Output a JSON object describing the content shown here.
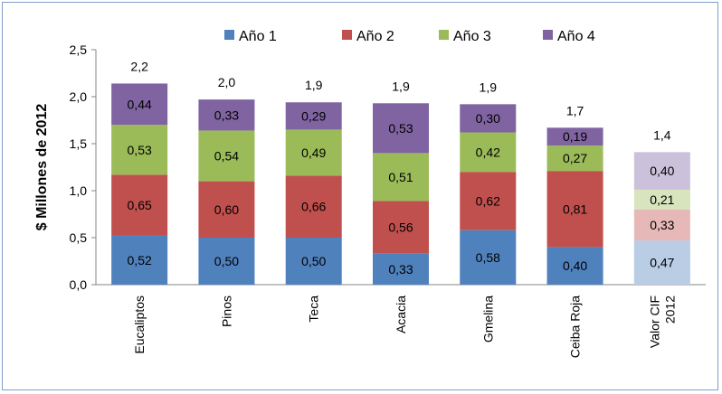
{
  "chart_data": {
    "type": "bar",
    "stacked": true,
    "ylabel": "$ Millones de 2012",
    "ylim": [
      0,
      2.5
    ],
    "yticks": [
      "0,0",
      "0,5",
      "1,0",
      "1,5",
      "2,0",
      "2,5"
    ],
    "categories": [
      "Eucaliptos",
      "Pinos",
      "Teca",
      "Acacia",
      "Gmelina",
      "Ceiba Roja",
      "Valor CIF 2012"
    ],
    "series": [
      {
        "name": "Año 1",
        "color": "#4f81bd",
        "values": [
          0.52,
          0.5,
          0.5,
          0.33,
          0.58,
          0.4,
          0.47
        ],
        "labels": [
          "0,52",
          "0,50",
          "0,50",
          "0,33",
          "0,58",
          "0,40",
          "0,47"
        ]
      },
      {
        "name": "Año 2",
        "color": "#c0504d",
        "values": [
          0.65,
          0.6,
          0.66,
          0.56,
          0.62,
          0.81,
          0.33
        ],
        "labels": [
          "0,65",
          "0,60",
          "0,66",
          "0,56",
          "0,62",
          "0,81",
          "0,33"
        ]
      },
      {
        "name": "Año 3",
        "color": "#9bbb59",
        "values": [
          0.53,
          0.54,
          0.49,
          0.51,
          0.42,
          0.27,
          0.21
        ],
        "labels": [
          "0,53",
          "0,54",
          "0,49",
          "0,51",
          "0,42",
          "0,27",
          "0,21"
        ]
      },
      {
        "name": "Año 4",
        "color": "#8064a2",
        "values": [
          0.44,
          0.33,
          0.29,
          0.53,
          0.3,
          0.19,
          0.4
        ],
        "labels": [
          "0,44",
          "0,33",
          "0,29",
          "0,53",
          "0,30",
          "0,19",
          "0,40"
        ]
      }
    ],
    "light_colors_last_category": [
      "#b9cde5",
      "#e6b9b8",
      "#d7e4bd",
      "#ccc1da"
    ],
    "totals": [
      "2,2",
      "2,0",
      "1,9",
      "1,9",
      "1,9",
      "1,7",
      "1,4"
    ],
    "legend_position": "top",
    "grid": false
  }
}
